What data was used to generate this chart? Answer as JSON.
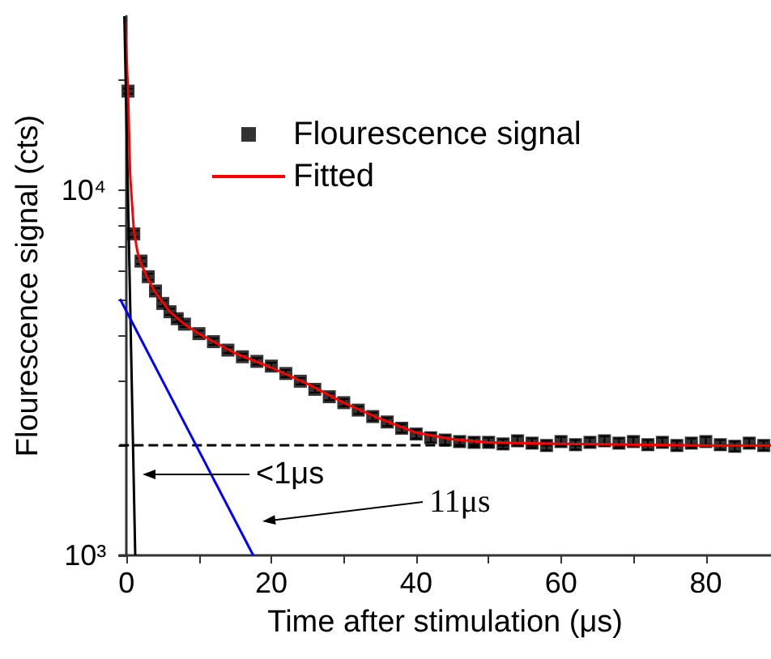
{
  "chart_data": {
    "type": "scatter",
    "xlabel": "Time after stimulation (μs)",
    "ylabel": "Flourescence signal (cts)",
    "log": "y",
    "grid": false,
    "legend": "top",
    "xlim": [
      -1,
      89
    ],
    "ylim": [
      1000,
      30000
    ],
    "xticks": [
      0,
      {
        "value": 10,
        "label": null
      },
      20,
      {
        "value": 30,
        "label": null
      },
      40,
      {
        "value": 50,
        "label": null
      },
      60,
      {
        "value": 70,
        "label": null
      },
      80
    ],
    "yticks": [
      {
        "value": 1000,
        "label": "10³"
      },
      {
        "value": 2000,
        "label": null
      },
      {
        "value": 3000,
        "label": null
      },
      {
        "value": 4000,
        "label": null
      },
      {
        "value": 5000,
        "label": null
      },
      {
        "value": 6000,
        "label": null
      },
      {
        "value": 7000,
        "label": null
      },
      {
        "value": 8000,
        "label": null
      },
      {
        "value": 9000,
        "label": null
      },
      {
        "value": 10000,
        "label": "10⁴"
      },
      {
        "value": 20000,
        "label": null
      }
    ],
    "series": [
      {
        "name": "Flourescence signal",
        "marker": "square",
        "color": "#000000",
        "x": [
          0.2,
          1,
          2,
          3,
          4,
          5,
          6,
          7,
          8,
          10,
          12,
          14,
          16,
          18,
          20,
          22,
          24,
          26,
          28,
          30,
          32,
          34,
          36,
          38,
          40,
          42,
          44,
          46,
          48,
          50,
          52,
          54,
          56,
          58,
          60,
          62,
          64,
          66,
          68,
          70,
          72,
          74,
          76,
          78,
          80,
          82,
          84,
          86,
          88
        ],
        "values": [
          18700,
          7600,
          6400,
          5800,
          5300,
          4900,
          4650,
          4450,
          4300,
          4050,
          3850,
          3650,
          3500,
          3400,
          3300,
          3150,
          3000,
          2850,
          2720,
          2620,
          2500,
          2400,
          2320,
          2230,
          2150,
          2100,
          2070,
          2050,
          2040,
          2040,
          2020,
          2060,
          2030,
          2000,
          2050,
          2010,
          2040,
          2060,
          2030,
          2050,
          2010,
          2040,
          2000,
          2030,
          2050,
          2010,
          1990,
          2030,
          2000
        ],
        "errors": [
          300,
          150,
          120,
          110,
          100,
          90,
          90,
          90,
          80,
          80,
          80,
          70,
          70,
          70,
          70,
          70,
          60,
          60,
          60,
          60,
          60,
          60,
          60,
          60,
          60,
          60,
          60,
          60,
          60,
          60,
          60,
          60,
          60,
          60,
          60,
          60,
          60,
          60,
          60,
          60,
          60,
          60,
          60,
          60,
          60,
          60,
          60,
          60,
          60
        ]
      },
      {
        "name": "Fitted",
        "type": "line",
        "marker": "none",
        "line_style": "solid",
        "color": "#ff0000",
        "x": [
          -0.2,
          0.2,
          0.5,
          1,
          1.5,
          2,
          3,
          4,
          6,
          8,
          10,
          15,
          20,
          25,
          30,
          35,
          40,
          45,
          50,
          60,
          70,
          80,
          89
        ],
        "values": [
          29000,
          18700,
          11000,
          7800,
          6800,
          6300,
          5700,
          5250,
          4650,
          4300,
          4050,
          3580,
          3270,
          2950,
          2620,
          2370,
          2170,
          2080,
          2040,
          2020,
          2010,
          2000,
          2000
        ]
      },
      {
        "type": "line",
        "marker": "none",
        "line_style": "solid",
        "color": "#000000",
        "x": [
          -0.3,
          1.2
        ],
        "values": [
          30000,
          1000
        ]
      },
      {
        "type": "line",
        "marker": "none",
        "line_style": "solid",
        "color": "#0000ff",
        "x": [
          -0.9,
          17.5
        ],
        "values": [
          5040,
          1000
        ]
      }
    ],
    "ref_lines": [
      {
        "axis": "y",
        "value": 2000,
        "label": null,
        "color": "#000000",
        "line_style": "dashed"
      }
    ],
    "annotations": [
      "<1μs",
      "11μs"
    ]
  }
}
